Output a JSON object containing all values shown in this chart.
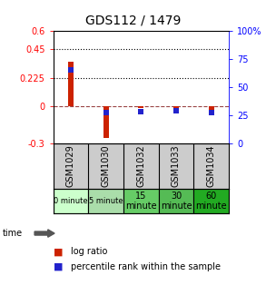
{
  "title": "GDS112 / 1479",
  "samples": [
    "GSM1029",
    "GSM1030",
    "GSM1032",
    "GSM1033",
    "GSM1034"
  ],
  "log_ratios": [
    0.35,
    -0.255,
    -0.018,
    -0.012,
    -0.068
  ],
  "percentile_ranks": [
    0.65,
    0.275,
    0.285,
    0.29,
    0.278
  ],
  "time_labels": [
    "0 minute",
    "5 minute",
    "15\nminute",
    "30\nminute",
    "60\nminute"
  ],
  "time_colors": [
    "#ccffcc",
    "#aaddaa",
    "#66cc66",
    "#55bb55",
    "#22aa22"
  ],
  "sample_bg": "#cccccc",
  "ylim_left": [
    -0.3,
    0.6
  ],
  "ylim_right": [
    0.0,
    1.0
  ],
  "yticks_left": [
    -0.3,
    0.0,
    0.225,
    0.45,
    0.6
  ],
  "yticks_right": [
    0.0,
    0.25,
    0.5,
    0.75,
    1.0
  ],
  "ytick_labels_left": [
    "-0.3",
    "0",
    "0.225",
    "0.45",
    "0.6"
  ],
  "ytick_labels_right": [
    "0",
    "25",
    "50",
    "75",
    "100%"
  ],
  "hlines": [
    0.45,
    0.225
  ],
  "bar_color_log": "#cc2200",
  "bar_color_pct": "#2222cc",
  "bar_width": 0.15,
  "pct_marker_size": 5
}
